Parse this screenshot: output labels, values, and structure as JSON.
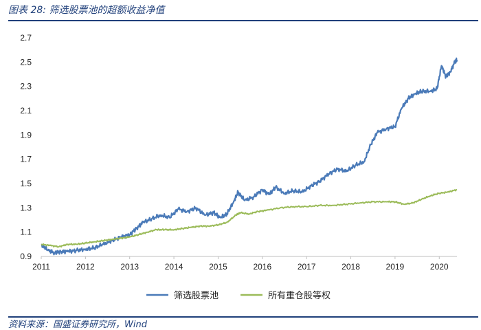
{
  "header": {
    "title": "图表 28: 筛选股票池的超额收益净值"
  },
  "footer": {
    "source": "资料来源：国盛证券研究所，Wind"
  },
  "chart_data": {
    "type": "line",
    "title": "",
    "xlabel": "",
    "ylabel": "",
    "xlim": [
      2011.0,
      2020.4
    ],
    "ylim": [
      0.9,
      2.7
    ],
    "y_ticks": [
      "0.9",
      "1.1",
      "1.3",
      "1.5",
      "1.7",
      "1.9",
      "2.1",
      "2.3",
      "2.5",
      "2.7"
    ],
    "x_ticks": [
      "2011",
      "2012",
      "2013",
      "2014",
      "2015",
      "2016",
      "2017",
      "2018",
      "2019",
      "2020"
    ],
    "grid": false,
    "legend": "bottom-center",
    "series": [
      {
        "name": "筛选股票池",
        "color": "#4a7ab8",
        "x": [
          2011.0,
          2011.15,
          2011.3,
          2011.45,
          2011.6,
          2011.8,
          2012.0,
          2012.2,
          2012.4,
          2012.6,
          2012.8,
          2013.0,
          2013.15,
          2013.3,
          2013.5,
          2013.7,
          2013.9,
          2014.1,
          2014.3,
          2014.5,
          2014.7,
          2014.9,
          2015.05,
          2015.2,
          2015.35,
          2015.45,
          2015.6,
          2015.8,
          2016.0,
          2016.15,
          2016.3,
          2016.5,
          2016.7,
          2016.9,
          2017.1,
          2017.3,
          2017.5,
          2017.7,
          2017.9,
          2018.1,
          2018.3,
          2018.45,
          2018.6,
          2018.8,
          2019.0,
          2019.15,
          2019.3,
          2019.45,
          2019.6,
          2019.8,
          2019.95,
          2020.05,
          2020.15,
          2020.25,
          2020.35,
          2020.4
        ],
        "values": [
          1.0,
          0.95,
          0.93,
          0.94,
          0.94,
          0.95,
          0.96,
          0.97,
          1.0,
          1.03,
          1.06,
          1.08,
          1.13,
          1.18,
          1.21,
          1.24,
          1.22,
          1.29,
          1.27,
          1.3,
          1.24,
          1.26,
          1.22,
          1.25,
          1.35,
          1.43,
          1.36,
          1.39,
          1.45,
          1.41,
          1.47,
          1.42,
          1.44,
          1.43,
          1.48,
          1.52,
          1.58,
          1.62,
          1.6,
          1.65,
          1.68,
          1.82,
          1.92,
          1.95,
          1.97,
          2.12,
          2.2,
          2.24,
          2.26,
          2.26,
          2.28,
          2.47,
          2.38,
          2.42,
          2.5,
          2.52
        ]
      },
      {
        "name": "所有重仓股等权",
        "color": "#9bbb59",
        "x": [
          2011.0,
          2011.2,
          2011.4,
          2011.6,
          2011.8,
          2012.0,
          2012.2,
          2012.4,
          2012.6,
          2012.8,
          2013.0,
          2013.2,
          2013.4,
          2013.6,
          2013.8,
          2014.0,
          2014.2,
          2014.4,
          2014.6,
          2014.8,
          2015.0,
          2015.2,
          2015.4,
          2015.5,
          2015.7,
          2015.9,
          2016.1,
          2016.4,
          2016.7,
          2017.0,
          2017.3,
          2017.6,
          2017.9,
          2018.2,
          2018.5,
          2018.8,
          2019.0,
          2019.2,
          2019.4,
          2019.6,
          2019.8,
          2020.0,
          2020.2,
          2020.4
        ],
        "values": [
          1.0,
          0.99,
          0.98,
          1.0,
          1.0,
          1.01,
          1.02,
          1.03,
          1.04,
          1.05,
          1.06,
          1.08,
          1.1,
          1.12,
          1.12,
          1.12,
          1.13,
          1.14,
          1.15,
          1.15,
          1.16,
          1.18,
          1.24,
          1.26,
          1.25,
          1.27,
          1.28,
          1.3,
          1.31,
          1.31,
          1.32,
          1.32,
          1.33,
          1.34,
          1.35,
          1.35,
          1.35,
          1.33,
          1.34,
          1.37,
          1.4,
          1.42,
          1.43,
          1.45
        ]
      }
    ]
  }
}
